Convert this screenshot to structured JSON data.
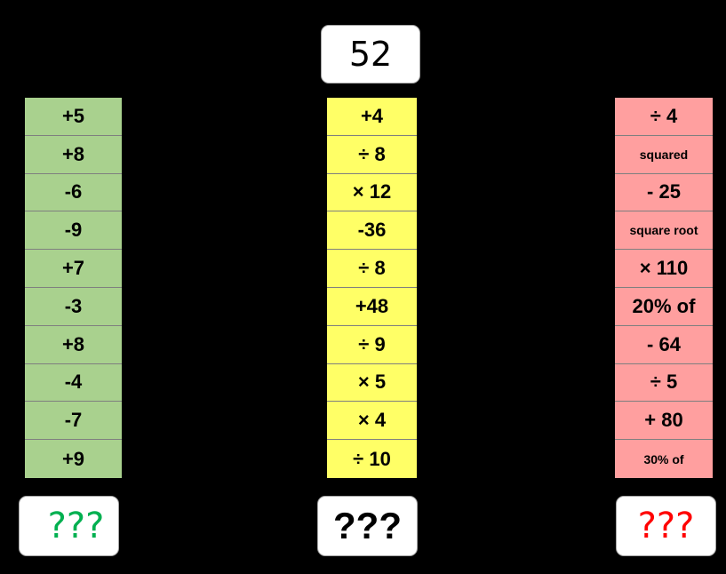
{
  "start_number": "52",
  "columns": {
    "green": {
      "color": "#a9d18e",
      "steps": [
        "+5",
        "+8",
        "-6",
        "-9",
        "+7",
        "-3",
        "+8",
        "-4",
        "-7",
        "+9"
      ],
      "answer": "???",
      "answer_color": "#00b050"
    },
    "yellow": {
      "color": "#ffff66",
      "steps": [
        "+4",
        "÷ 8",
        "× 12",
        "-36",
        "÷ 8",
        "+48",
        "÷ 9",
        "× 5",
        "× 4",
        "÷ 10"
      ],
      "answer": "???",
      "answer_color": "#000000"
    },
    "red": {
      "color": "#ff9f9f",
      "steps": [
        "÷ 4",
        "squared",
        "- 25",
        "square root",
        "× 110",
        "20% of",
        "- 64",
        "÷ 5",
        "+ 80",
        "30% of"
      ],
      "answer": "???",
      "answer_color": "#ff0000"
    }
  }
}
